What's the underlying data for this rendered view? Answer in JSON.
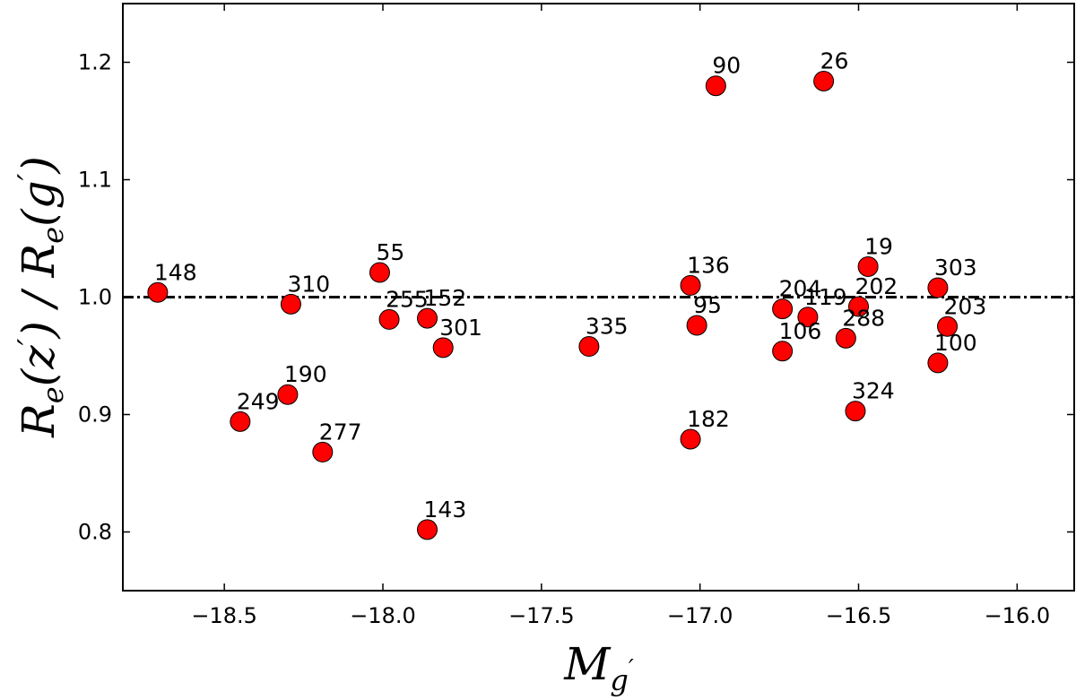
{
  "chart_data": {
    "type": "scatter",
    "title": "",
    "xlabel": "M_{g'}",
    "ylabel": "R_e(z')/R_e(g')",
    "xlim": [
      -18.82,
      -15.82
    ],
    "ylim": [
      0.75,
      1.25
    ],
    "xticks": [
      -18.5,
      -18.0,
      -17.5,
      -17.0,
      -16.5,
      -16.0
    ],
    "yticks": [
      0.8,
      0.9,
      1.0,
      1.1,
      1.2
    ],
    "xtick_labels": [
      "−18.5",
      "−18.0",
      "−17.5",
      "−17.0",
      "−16.5",
      "−16.0"
    ],
    "ytick_labels": [
      "0.8",
      "0.9",
      "1.0",
      "1.1",
      "1.2"
    ],
    "reference_line": {
      "y": 1.0,
      "style": "dash-dot"
    },
    "grid": false,
    "marker_color": "#ff0000",
    "marker_edge_color": "#000000",
    "points": [
      {
        "label": "148",
        "x": -18.71,
        "y": 1.004
      },
      {
        "label": "310",
        "x": -18.29,
        "y": 0.994
      },
      {
        "label": "190",
        "x": -18.3,
        "y": 0.917
      },
      {
        "label": "249",
        "x": -18.45,
        "y": 0.894
      },
      {
        "label": "277",
        "x": -18.19,
        "y": 0.868
      },
      {
        "label": "55",
        "x": -18.01,
        "y": 1.021
      },
      {
        "label": "255",
        "x": -17.98,
        "y": 0.981
      },
      {
        "label": "152",
        "x": -17.86,
        "y": 0.982
      },
      {
        "label": "301",
        "x": -17.81,
        "y": 0.957
      },
      {
        "label": "143",
        "x": -17.86,
        "y": 0.802
      },
      {
        "label": "335",
        "x": -17.35,
        "y": 0.958
      },
      {
        "label": "90",
        "x": -16.95,
        "y": 1.18
      },
      {
        "label": "26",
        "x": -16.61,
        "y": 1.184
      },
      {
        "label": "136",
        "x": -17.03,
        "y": 1.01
      },
      {
        "label": "95",
        "x": -17.01,
        "y": 0.976
      },
      {
        "label": "182",
        "x": -17.03,
        "y": 0.879
      },
      {
        "label": "204",
        "x": -16.74,
        "y": 0.99
      },
      {
        "label": "119",
        "x": -16.66,
        "y": 0.983
      },
      {
        "label": "106",
        "x": -16.74,
        "y": 0.954
      },
      {
        "label": "202",
        "x": -16.5,
        "y": 0.992
      },
      {
        "label": "19",
        "x": -16.47,
        "y": 1.026
      },
      {
        "label": "288",
        "x": -16.54,
        "y": 0.965
      },
      {
        "label": "324",
        "x": -16.51,
        "y": 0.903
      },
      {
        "label": "303",
        "x": -16.25,
        "y": 1.008
      },
      {
        "label": "203",
        "x": -16.22,
        "y": 0.975
      },
      {
        "label": "100",
        "x": -16.25,
        "y": 0.944
      }
    ]
  }
}
